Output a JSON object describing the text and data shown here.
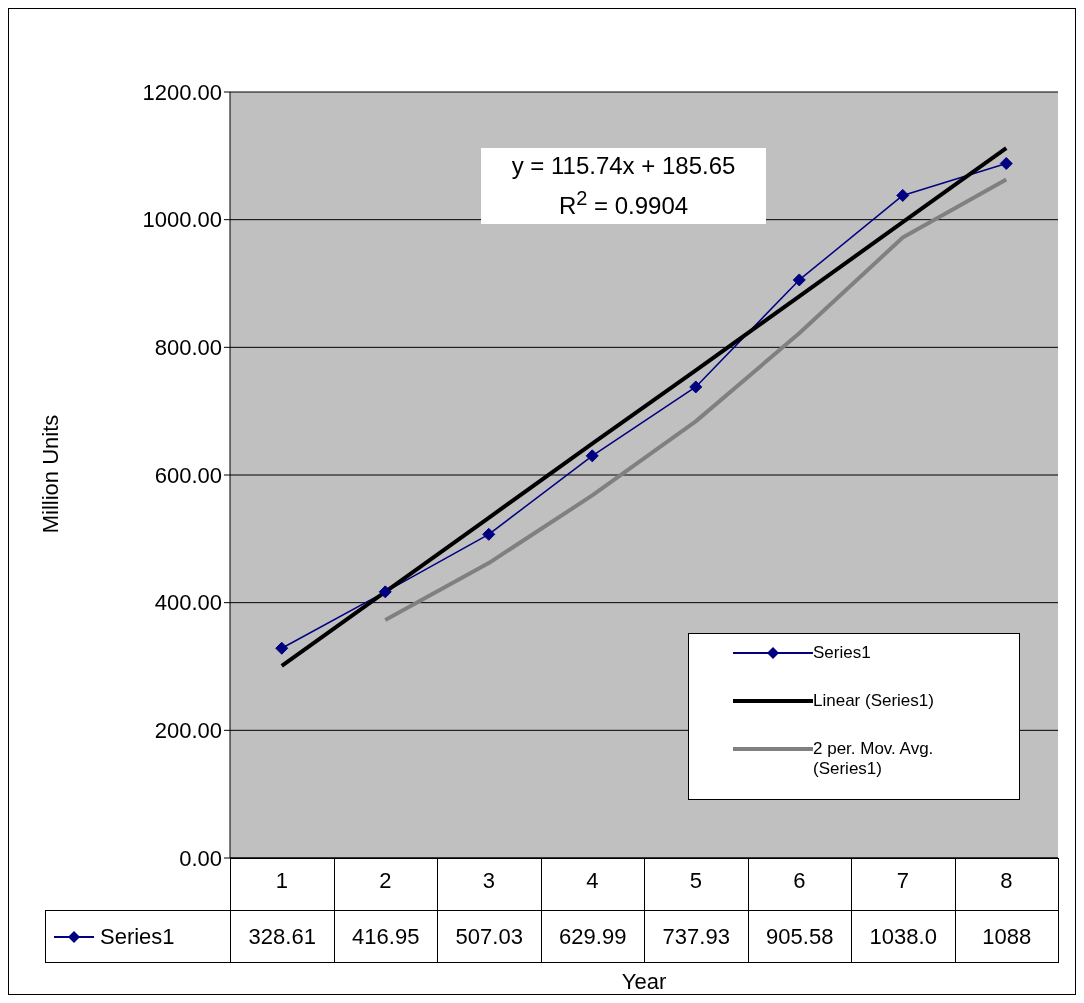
{
  "chart_data": {
    "type": "line",
    "xlabel": "Year",
    "ylabel": "Million Units",
    "categories": [
      "1",
      "2",
      "3",
      "4",
      "5",
      "6",
      "7",
      "8"
    ],
    "series": [
      {
        "name": "Series1",
        "color": "#000080",
        "marker": "diamond",
        "values": [
          328.61,
          416.95,
          507.03,
          629.99,
          737.93,
          905.58,
          1038.0,
          1088
        ],
        "value_labels": [
          "328.61",
          "416.95",
          "507.03",
          "629.99",
          "737.93",
          "905.58",
          "1038.0",
          "1088"
        ]
      },
      {
        "name": "Linear (Series1)",
        "color": "#000000",
        "marker": "none",
        "values": [
          301,
          417,
          533,
          649,
          764,
          880,
          996,
          1112
        ]
      },
      {
        "name": "2 per. Mov. Avg. (Series1)",
        "color": "#808080",
        "marker": "none",
        "values": [
          null,
          373,
          462,
          568,
          684,
          822,
          972,
          1063
        ]
      }
    ],
    "ylim": [
      0,
      1200
    ],
    "yticks": [
      {
        "value": 0,
        "label": "0.00"
      },
      {
        "value": 200,
        "label": "200.00"
      },
      {
        "value": 400,
        "label": "400.00"
      },
      {
        "value": 600,
        "label": "600.00"
      },
      {
        "value": 800,
        "label": "800.00"
      },
      {
        "value": 1000,
        "label": "1000.00"
      },
      {
        "value": 1200,
        "label": "1200.00"
      }
    ],
    "grid": "y",
    "legend": "bottom right",
    "line_style": "solid",
    "annotations": [
      "y = 115.74x + 185.65",
      "R$^{2}$ = 0.9904"
    ]
  }
}
